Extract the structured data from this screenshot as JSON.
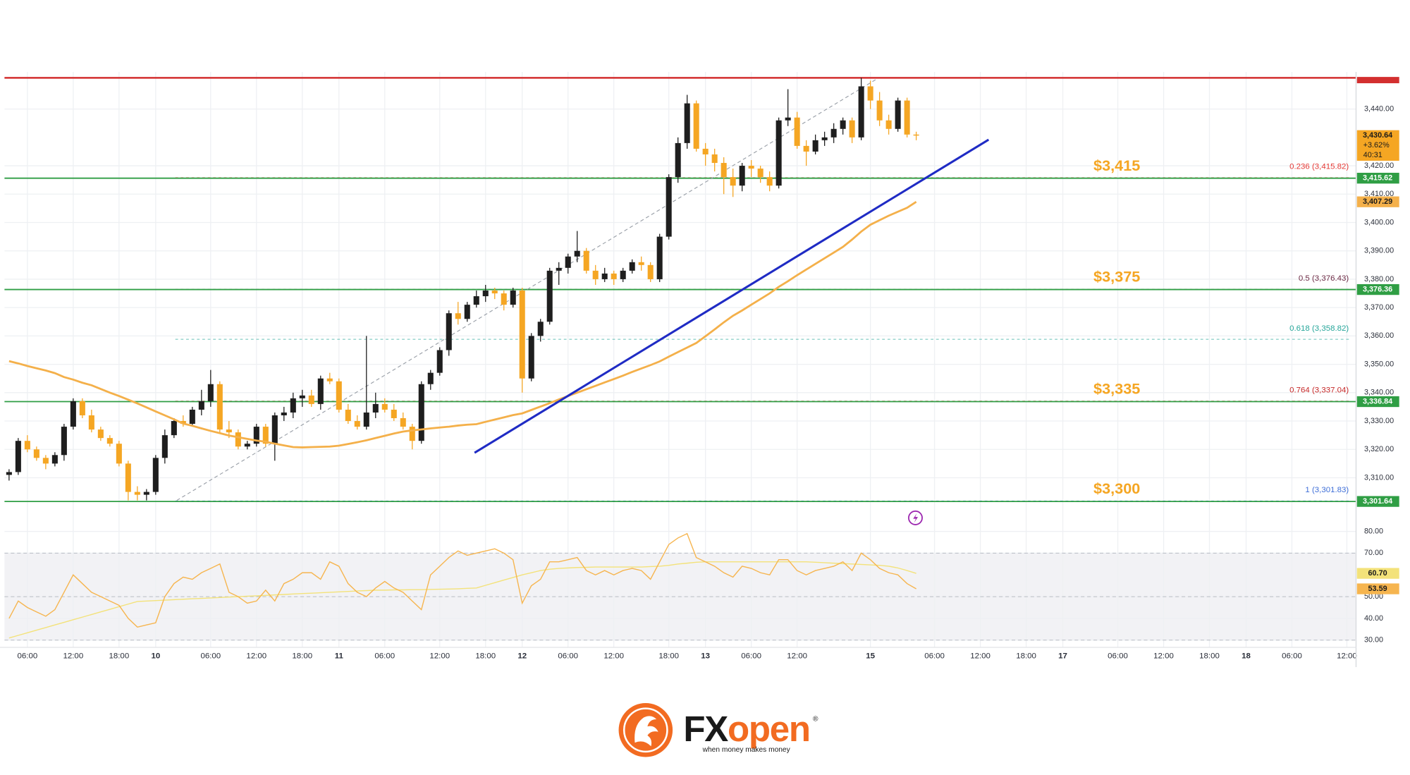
{
  "chart_data": {
    "type": "candlestick",
    "open": [
      3311,
      3312,
      3323,
      3320,
      3317,
      3315,
      3318,
      3328,
      3337,
      3332,
      3327,
      3324,
      3322,
      3315,
      3305,
      3304,
      3305,
      3317,
      3325,
      3330,
      3329,
      3334,
      3337,
      3343,
      3327,
      3326,
      3321,
      3322,
      3328,
      3322,
      3332,
      3333,
      3338,
      3339,
      3336,
      3345,
      3344,
      3334,
      3330,
      3328,
      3333,
      3336,
      3334,
      3331,
      3328,
      3323,
      3343,
      3347,
      3355,
      3368,
      3366,
      3371,
      3374,
      3376,
      3375,
      3371,
      3376,
      3345,
      3360,
      3365,
      3383,
      3384,
      3388,
      3390,
      3383,
      3380,
      3382,
      3380,
      3383,
      3386,
      3385,
      3380,
      3395,
      3416,
      3428,
      3442,
      3426,
      3424,
      3421,
      3416,
      3413,
      3420,
      3419,
      3416,
      3413,
      3436,
      3437,
      3427,
      3425,
      3429,
      3430,
      3433,
      3436,
      3430,
      3448,
      3443,
      3436,
      3433,
      3443,
      3431
    ],
    "high": [
      3313,
      3324,
      3325,
      3321,
      3318,
      3319,
      3329,
      3338,
      3338,
      3334,
      3328,
      3325,
      3323,
      3316,
      3307,
      3306,
      3318,
      3327,
      3331,
      3332,
      3335,
      3341,
      3348,
      3344,
      3330,
      3327,
      3323,
      3329,
      3329,
      3333,
      3335,
      3340,
      3341,
      3341,
      3346,
      3347,
      3345,
      3336,
      3332,
      3360,
      3340,
      3338,
      3336,
      3333,
      3329,
      3344,
      3348,
      3356,
      3369,
      3372,
      3372,
      3376,
      3378,
      3377,
      3376,
      3377,
      3377,
      3361,
      3366,
      3384,
      3386,
      3389,
      3397,
      3391,
      3385,
      3384,
      3383,
      3384,
      3387,
      3388,
      3386,
      3396,
      3417,
      3430,
      3445,
      3443,
      3428,
      3426,
      3423,
      3419,
      3421,
      3422,
      3420,
      3418,
      3437,
      3447,
      3439,
      3429,
      3431,
      3432,
      3435,
      3437,
      3437,
      3451,
      3450,
      3446,
      3438,
      3444,
      3444,
      3432
    ],
    "low": [
      3309,
      3311,
      3319,
      3316,
      3313,
      3314,
      3316,
      3327,
      3331,
      3326,
      3323,
      3321,
      3314,
      3302,
      3302,
      3302,
      3304,
      3315,
      3324,
      3328,
      3328,
      3332,
      3335,
      3326,
      3324,
      3320,
      3320,
      3321,
      3321,
      3316,
      3330,
      3331,
      3335,
      3335,
      3334,
      3343,
      3333,
      3329,
      3327,
      3327,
      3331,
      3333,
      3330,
      3327,
      3320,
      3322,
      3341,
      3346,
      3353,
      3364,
      3365,
      3370,
      3372,
      3373,
      3369,
      3370,
      3340,
      3344,
      3358,
      3364,
      3378,
      3382,
      3386,
      3382,
      3378,
      3379,
      3378,
      3379,
      3382,
      3383,
      3379,
      3379,
      3394,
      3414,
      3426,
      3425,
      3420,
      3418,
      3410,
      3409,
      3411,
      3416,
      3414,
      3411,
      3412,
      3434,
      3426,
      3420,
      3424,
      3427,
      3428,
      3431,
      3428,
      3429,
      3440,
      3434,
      3431,
      3432,
      3430,
      3429
    ],
    "close": [
      3312,
      3323,
      3320,
      3317,
      3315,
      3318,
      3328,
      3337,
      3332,
      3327,
      3324,
      3322,
      3315,
      3305,
      3304,
      3305,
      3317,
      3325,
      3330,
      3329,
      3334,
      3337,
      3343,
      3327,
      3326,
      3321,
      3322,
      3328,
      3322,
      3332,
      3333,
      3338,
      3339,
      3336,
      3345,
      3344,
      3334,
      3330,
      3328,
      3333,
      3336,
      3334,
      3331,
      3328,
      3323,
      3343,
      3347,
      3355,
      3368,
      3366,
      3371,
      3374,
      3376,
      3375,
      3371,
      3376,
      3345,
      3360,
      3365,
      3383,
      3384,
      3388,
      3390,
      3383,
      3380,
      3382,
      3380,
      3383,
      3386,
      3385,
      3380,
      3395,
      3416,
      3428,
      3442,
      3426,
      3424,
      3421,
      3416,
      3413,
      3420,
      3419,
      3416,
      3413,
      3436,
      3437,
      3427,
      3425,
      3429,
      3430,
      3433,
      3436,
      3430,
      3448,
      3443,
      3436,
      3433,
      3443,
      3431,
      3430.64
    ],
    "up_color": "#1e1e1e",
    "down_color": "#f5a623",
    "moving_average": {
      "color": "#f4b04a",
      "values": [
        3351.1,
        3350.3,
        3349.4,
        3348.6,
        3347.8,
        3346.9,
        3345.5,
        3344.6,
        3343.5,
        3342.6,
        3341.3,
        3340.0,
        3338.8,
        3337.5,
        3336.2,
        3334.8,
        3333.4,
        3332.0,
        3330.6,
        3329.1,
        3328.3,
        3327.4,
        3326.5,
        3325.7,
        3324.9,
        3324.3,
        3323.7,
        3323.1,
        3322.7,
        3322.0,
        3321.4,
        3320.8,
        3320.7,
        3320.8,
        3320.9,
        3321.0,
        3321.3,
        3321.9,
        3322.5,
        3323.2,
        3324.0,
        3324.8,
        3325.6,
        3326.3,
        3326.7,
        3327.0,
        3327.4,
        3327.7,
        3328.0,
        3328.4,
        3328.7,
        3328.9,
        3329.7,
        3330.5,
        3331.3,
        3332.1,
        3332.7,
        3333.9,
        3335.1,
        3336.3,
        3337.6,
        3338.8,
        3340.0,
        3341.2,
        3342.4,
        3343.6,
        3344.8,
        3346.0,
        3347.3,
        3348.5,
        3349.7,
        3351.0,
        3352.7,
        3354.3,
        3355.9,
        3357.5,
        3359.9,
        3362.3,
        3364.8,
        3367.1,
        3369.0,
        3371.0,
        3373.0,
        3375.0,
        3377.3,
        3379.3,
        3381.4,
        3383.4,
        3385.4,
        3387.4,
        3389.4,
        3391.4,
        3394.0,
        3396.8,
        3399.2,
        3400.8,
        3402.4,
        3403.8,
        3405.2,
        3407.29
      ],
      "tag": {
        "value": 3407.29,
        "label": "3,407.29"
      }
    },
    "xlim": [
      -0.5,
      147
    ],
    "xticks": [
      {
        "value": 2,
        "label": "06:00"
      },
      {
        "value": 7,
        "label": "12:00"
      },
      {
        "value": 12,
        "label": "18:00"
      },
      {
        "value": 16,
        "label": "10"
      },
      {
        "value": 22,
        "label": "06:00"
      },
      {
        "value": 27,
        "label": "12:00"
      },
      {
        "value": 32,
        "label": "18:00"
      },
      {
        "value": 36,
        "label": "11"
      },
      {
        "value": 41,
        "label": "06:00"
      },
      {
        "value": 47,
        "label": "12:00"
      },
      {
        "value": 52,
        "label": "18:00"
      },
      {
        "value": 56,
        "label": "12"
      },
      {
        "value": 61,
        "label": "06:00"
      },
      {
        "value": 66,
        "label": "12:00"
      },
      {
        "value": 72,
        "label": "18:00"
      },
      {
        "value": 76,
        "label": "13"
      },
      {
        "value": 81,
        "label": "06:00"
      },
      {
        "value": 86,
        "label": "12:00"
      },
      {
        "value": 94,
        "label": "15"
      },
      {
        "value": 101,
        "label": "06:00"
      },
      {
        "value": 106,
        "label": "12:00"
      },
      {
        "value": 111,
        "label": "18:00"
      },
      {
        "value": 115,
        "label": "17"
      },
      {
        "value": 121,
        "label": "06:00"
      },
      {
        "value": 126,
        "label": "12:00"
      },
      {
        "value": 131,
        "label": "18:00"
      },
      {
        "value": 135,
        "label": "18"
      },
      {
        "value": 140,
        "label": "06:00"
      },
      {
        "value": 146,
        "label": "12:00"
      }
    ],
    "ylim": [
      3293,
      3451.5
    ],
    "yticks": [
      {
        "value": 3310,
        "label": "3,310.00"
      },
      {
        "value": 3320,
        "label": "3,320.00"
      },
      {
        "value": 3330,
        "label": "3,330.00"
      },
      {
        "value": 3340,
        "label": "3,340.00"
      },
      {
        "value": 3350,
        "label": "3,350.00"
      },
      {
        "value": 3360,
        "label": "3,360.00"
      },
      {
        "value": 3370,
        "label": "3,370.00"
      },
      {
        "value": 3380,
        "label": "3,380.00"
      },
      {
        "value": 3390,
        "label": "3,390.00"
      },
      {
        "value": 3400,
        "label": "3,400.00"
      },
      {
        "value": 3410,
        "label": "3,410.00"
      },
      {
        "value": 3420,
        "label": "3,420.00"
      },
      {
        "value": 3440,
        "label": "3,440.00"
      }
    ],
    "grid": true,
    "levels": [
      {
        "value": 3415.62,
        "label": "3,415.62",
        "name": "$3,415"
      },
      {
        "value": 3376.36,
        "label": "3,376.36",
        "name": "$3,375"
      },
      {
        "value": 3336.84,
        "label": "3,336.84",
        "name": "$3,335"
      },
      {
        "value": 3301.64,
        "label": "3,301.64",
        "name": "$3,300"
      }
    ],
    "level_color": "#2f9e44",
    "level_name_color": "#f5a623",
    "fib_levels": [
      {
        "value": 3415.82,
        "label": "0.236 (3,415.82)",
        "color": "#e53935"
      },
      {
        "value": 3376.43,
        "label": "0.5 (3,376.43)",
        "color": "#6d2b45"
      },
      {
        "value": 3358.82,
        "label": "0.618 (3,358.82)",
        "color": "#26a69a"
      },
      {
        "value": 3337.04,
        "label": "0.764 (3,337.04)",
        "color": "#c62828"
      },
      {
        "value": 3301.83,
        "label": "1 (3,301.83)",
        "color": "#3f6fd8"
      }
    ],
    "resistance": {
      "value": 3451,
      "color": "#d32f2f"
    },
    "trendline": {
      "x": [
        50.8,
        106.9
      ],
      "y": [
        3318.8,
        3429.2
      ],
      "color": "#1f2bc4"
    },
    "channel_line": {
      "x": [
        18.3,
        94.8
      ],
      "y": [
        3302,
        3450.8
      ]
    },
    "last_price": {
      "value": 3430.64,
      "label": "3,430.64",
      "change": "+3.62%",
      "countdown": "40:31"
    },
    "rsi": {
      "color": "#f6b54f",
      "values": [
        40,
        48,
        45,
        43,
        41,
        44,
        52,
        60,
        56,
        52,
        50,
        48,
        46,
        40,
        36,
        37,
        38,
        50,
        56,
        59,
        58,
        61,
        63,
        65,
        52,
        50,
        47,
        48,
        53,
        48,
        56,
        58,
        61,
        61,
        58,
        66,
        64,
        56,
        52,
        50,
        54,
        57,
        54,
        52,
        48,
        44,
        60,
        64,
        68,
        71,
        69,
        70,
        71,
        72,
        70,
        67,
        47,
        55,
        58,
        66,
        66,
        67,
        68,
        62,
        60,
        62,
        60,
        62,
        63,
        62,
        58,
        66,
        74,
        77,
        79,
        68,
        66,
        64,
        61,
        59,
        64,
        63,
        61,
        60,
        67,
        67,
        62,
        60,
        62,
        63,
        64,
        66,
        62,
        70,
        67,
        63,
        61,
        60,
        56,
        53.59
      ],
      "ma_color": "#f3e27a",
      "ma": [
        31,
        32.2,
        33.4,
        34.6,
        35.8,
        37,
        38.2,
        39.4,
        40.6,
        41.8,
        43,
        44.2,
        45.4,
        46.6,
        47.8,
        48,
        48.2,
        48.4,
        48.6,
        48.8,
        49,
        49.2,
        49.4,
        49.6,
        49.8,
        50,
        50.2,
        50.4,
        50.6,
        50.8,
        51,
        51.2,
        51.4,
        51.6,
        51.8,
        52,
        52.2,
        52.4,
        52.6,
        52.8,
        53,
        53,
        53.1,
        53.1,
        53.2,
        53.2,
        53.3,
        53.4,
        53.5,
        53.6,
        53.8,
        54,
        55.2,
        56.4,
        57.6,
        58.8,
        60,
        61,
        62,
        62.6,
        63,
        63.2,
        63.4,
        63.5,
        63.6,
        63.6,
        63.6,
        63.6,
        63.6,
        63.6,
        63.8,
        64,
        64.4,
        65,
        65.4,
        65.8,
        66,
        66,
        66,
        66,
        66,
        66,
        66,
        66,
        66,
        66,
        66,
        66,
        65.8,
        65.6,
        65.4,
        65.2,
        65,
        64.8,
        64.6,
        64.4,
        64,
        63.2,
        62,
        60.7
      ],
      "ylim": [
        26.7,
        82.5
      ],
      "yticks": [
        {
          "value": 30,
          "label": "30.00"
        },
        {
          "value": 40,
          "label": "40.00"
        },
        {
          "value": 50,
          "label": "50.00"
        },
        {
          "value": 70,
          "label": "70.00"
        },
        {
          "value": 80,
          "label": "80.00"
        }
      ],
      "band": [
        30,
        70
      ],
      "dashed": [
        30,
        50,
        70
      ],
      "tag": {
        "value": 53.59,
        "label": "53.59"
      },
      "ma_tag": {
        "value": 60.7,
        "label": "60.70"
      }
    }
  },
  "logo": {
    "brand_fx": "FX",
    "brand_open": "open",
    "registered": "®",
    "tagline": "when money makes money"
  }
}
